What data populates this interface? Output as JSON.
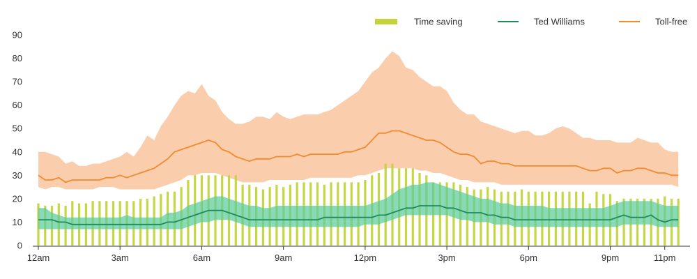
{
  "chart_data": {
    "type": "bar",
    "title": "",
    "xlabel": "",
    "ylabel": "",
    "ylim": [
      0,
      90
    ],
    "y_ticks": [
      "0",
      "10",
      "20",
      "30",
      "40",
      "50",
      "60",
      "70",
      "80",
      "90"
    ],
    "x_ticks": [
      "12am",
      "3am",
      "6am",
      "9am",
      "12pm",
      "3pm",
      "6pm",
      "9pm",
      "11pm"
    ],
    "x_tick_hours": [
      0,
      3,
      6,
      9,
      12,
      15,
      18,
      21,
      23
    ],
    "x_range_hours": [
      0,
      23.75
    ],
    "x_step_hours": 0.25,
    "grid": false,
    "legend_position": "top-right",
    "legend": [
      {
        "label": "Time saving",
        "kind": "bar",
        "color": "#c3d43b"
      },
      {
        "label": "Ted Williams",
        "kind": "line",
        "color": "#1e8a5e"
      },
      {
        "label": "Toll-free",
        "kind": "line",
        "color": "#f28a2e"
      }
    ],
    "series": [
      {
        "name": "Time saving",
        "type": "bar",
        "color": "#c3d43b",
        "values": [
          18,
          17,
          17,
          18,
          17,
          19,
          18,
          18,
          19,
          19,
          19,
          19,
          19,
          19,
          19,
          20,
          20,
          21,
          22,
          23,
          23,
          25,
          28,
          30,
          30,
          30,
          30,
          30,
          30,
          30,
          26,
          26,
          25,
          24,
          25,
          26,
          25,
          26,
          27,
          27,
          27,
          27,
          26,
          27,
          27,
          27,
          27,
          27,
          28,
          30,
          31,
          35,
          35,
          33,
          33,
          33,
          31,
          30,
          27,
          27,
          27,
          27,
          26,
          25,
          24,
          24,
          25,
          24,
          23,
          23,
          23,
          24,
          23,
          23,
          23,
          23,
          23,
          23,
          23,
          23,
          23,
          18,
          23,
          22,
          22,
          19,
          20,
          20,
          20,
          20,
          20,
          20,
          21,
          20,
          20
        ]
      },
      {
        "name": "Ted Williams",
        "type": "line",
        "color": "#1e8a5e",
        "band_color": "#5ccc9c",
        "values": [
          11,
          11,
          11,
          10,
          10,
          9,
          9,
          9,
          9,
          9,
          9,
          9,
          9,
          9,
          9,
          9,
          9,
          9,
          9,
          10,
          10,
          11,
          12,
          13,
          14,
          15,
          15,
          15,
          14,
          13,
          12,
          11,
          11,
          11,
          11,
          11,
          11,
          11,
          11,
          11,
          11,
          11,
          12,
          12,
          12,
          12,
          12,
          12,
          12,
          12,
          13,
          13,
          14,
          15,
          16,
          16,
          17,
          17,
          17,
          17,
          16,
          16,
          15,
          14,
          14,
          14,
          13,
          13,
          12,
          12,
          11,
          11,
          11,
          11,
          11,
          11,
          11,
          11,
          11,
          11,
          11,
          11,
          11,
          11,
          11,
          12,
          13,
          12,
          12,
          12,
          13,
          11,
          10,
          11,
          11
        ],
        "band_low": [
          7,
          7,
          7,
          7,
          7,
          7,
          7,
          7,
          7,
          7,
          7,
          7,
          7,
          7,
          7,
          7,
          7,
          7,
          7,
          7,
          7,
          7,
          8,
          9,
          10,
          10,
          11,
          11,
          11,
          10,
          9,
          8,
          8,
          8,
          8,
          8,
          8,
          8,
          8,
          8,
          8,
          8,
          8,
          8,
          8,
          8,
          8,
          8,
          9,
          9,
          9,
          10,
          11,
          12,
          13,
          13,
          13,
          13,
          13,
          13,
          13,
          12,
          11,
          11,
          10,
          10,
          10,
          9,
          9,
          9,
          8,
          8,
          8,
          8,
          8,
          8,
          8,
          8,
          8,
          8,
          8,
          8,
          8,
          8,
          8,
          8,
          9,
          9,
          9,
          9,
          9,
          8,
          8,
          8,
          8
        ],
        "band_high": [
          16,
          16,
          14,
          13,
          12,
          12,
          12,
          12,
          12,
          12,
          12,
          12,
          12,
          13,
          12,
          12,
          12,
          12,
          12,
          14,
          14,
          15,
          17,
          18,
          19,
          20,
          21,
          21,
          20,
          19,
          18,
          17,
          17,
          16,
          16,
          17,
          17,
          17,
          17,
          17,
          17,
          17,
          17,
          17,
          17,
          17,
          17,
          17,
          17,
          18,
          19,
          20,
          22,
          24,
          25,
          26,
          26,
          27,
          27,
          26,
          25,
          24,
          23,
          22,
          21,
          20,
          20,
          19,
          18,
          18,
          17,
          17,
          17,
          17,
          17,
          16,
          16,
          16,
          16,
          16,
          16,
          16,
          16,
          16,
          17,
          18,
          19,
          19,
          19,
          19,
          19,
          18,
          17,
          17,
          17
        ]
      },
      {
        "name": "Toll-free",
        "type": "line",
        "color": "#f28a2e",
        "band_color": "#f9c8a4",
        "values": [
          30,
          28,
          28,
          29,
          27,
          28,
          28,
          28,
          28,
          28,
          29,
          29,
          30,
          29,
          30,
          31,
          32,
          33,
          35,
          37,
          40,
          41,
          42,
          43,
          44,
          45,
          44,
          41,
          40,
          38,
          37,
          36,
          37,
          37,
          37,
          38,
          38,
          38,
          39,
          38,
          39,
          39,
          39,
          39,
          39,
          40,
          40,
          41,
          42,
          45,
          48,
          48,
          49,
          49,
          48,
          47,
          46,
          45,
          45,
          44,
          42,
          40,
          39,
          39,
          38,
          35,
          36,
          36,
          35,
          35,
          34,
          34,
          34,
          34,
          34,
          34,
          34,
          34,
          34,
          34,
          33,
          32,
          32,
          33,
          33,
          31,
          32,
          32,
          33,
          33,
          32,
          31,
          31,
          30,
          30
        ],
        "band_low": [
          25,
          24,
          25,
          25,
          24,
          24,
          24,
          24,
          24,
          25,
          25,
          25,
          24,
          24,
          24,
          24,
          24,
          24,
          25,
          26,
          27,
          28,
          30,
          30,
          31,
          31,
          31,
          30,
          29,
          28,
          27,
          27,
          27,
          27,
          28,
          28,
          28,
          28,
          28,
          28,
          29,
          29,
          29,
          29,
          29,
          29,
          29,
          30,
          30,
          31,
          32,
          33,
          33,
          33,
          33,
          33,
          32,
          32,
          31,
          31,
          30,
          29,
          28,
          28,
          27,
          27,
          27,
          27,
          26,
          26,
          26,
          26,
          26,
          26,
          26,
          26,
          26,
          26,
          26,
          26,
          26,
          26,
          26,
          26,
          26,
          26,
          26,
          26,
          26,
          26,
          26,
          26,
          26,
          26,
          25
        ],
        "band_high": [
          40,
          40,
          39,
          38,
          35,
          36,
          34,
          34,
          35,
          35,
          36,
          37,
          38,
          40,
          38,
          42,
          47,
          45,
          51,
          55,
          60,
          64,
          66,
          65,
          69,
          64,
          62,
          57,
          54,
          52,
          52,
          53,
          55,
          55,
          54,
          57,
          55,
          54,
          55,
          56,
          56,
          56,
          57,
          58,
          60,
          62,
          64,
          66,
          70,
          74,
          76,
          80,
          83,
          81,
          76,
          75,
          72,
          70,
          68,
          68,
          66,
          61,
          58,
          56,
          56,
          53,
          52,
          51,
          50,
          49,
          48,
          49,
          49,
          47,
          47,
          48,
          50,
          51,
          50,
          48,
          46,
          46,
          45,
          45,
          45,
          44,
          44,
          44,
          46,
          45,
          44,
          44,
          41,
          40,
          40
        ]
      }
    ]
  }
}
